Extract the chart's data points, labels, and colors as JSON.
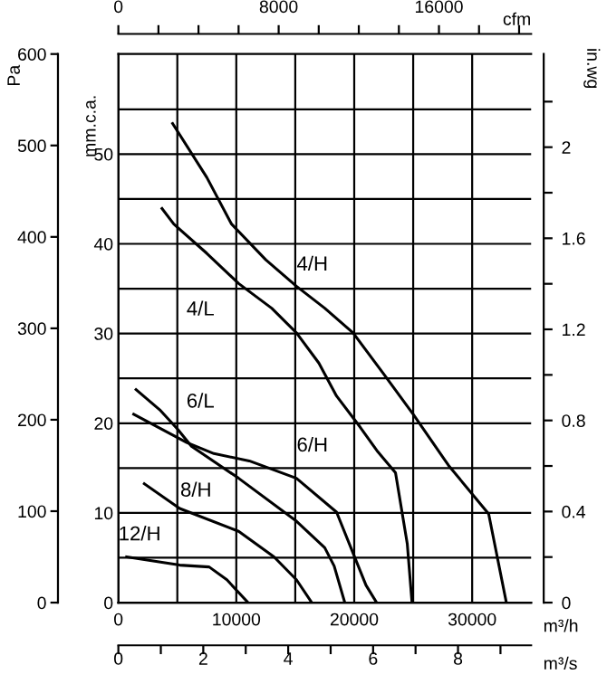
{
  "chart_data": {
    "type": "line",
    "xlabel": "m³/h",
    "ylabel": "Pa",
    "y2label": "mm.c.a.",
    "y3label": "in.wg",
    "x2label": "cfm",
    "xlim": [
      0,
      35000
    ],
    "xticks": [
      0,
      {
        "value": 5000,
        "label": null
      },
      10000,
      {
        "value": 15000,
        "label": null
      },
      20000,
      {
        "value": 25000,
        "label": null
      },
      30000
    ],
    "ylim": [
      0,
      600
    ],
    "yticks": [
      0,
      100,
      200,
      300,
      400,
      500,
      600
    ],
    "y2lim": [
      0,
      61.16
    ],
    "y2ticks": [
      0,
      {
        "value": 5,
        "label": null
      },
      10,
      {
        "value": 15,
        "label": null
      },
      20,
      {
        "value": 25,
        "label": null
      },
      30,
      {
        "value": 35,
        "label": null
      },
      40,
      {
        "value": 45,
        "label": null
      },
      50,
      {
        "value": 55,
        "label": null
      }
    ],
    "y3lim": [
      0,
      2.409
    ],
    "y3ticks": [
      0,
      {
        "value": 0.2,
        "label": null
      },
      0.4,
      {
        "value": 0.6,
        "label": null
      },
      0.8,
      {
        "value": 1.0,
        "label": null
      },
      1.2,
      {
        "value": 1.4,
        "label": null
      },
      1.6,
      {
        "value": 1.8,
        "label": null
      },
      2,
      {
        "value": 2.2,
        "label": null
      }
    ],
    "x2lim": [
      0,
      20600
    ],
    "x2ticks": [
      0,
      {
        "value": 2000,
        "label": null
      },
      {
        "value": 4000,
        "label": null
      },
      {
        "value": 6000,
        "label": null
      },
      8000,
      {
        "value": 10000,
        "label": null
      },
      {
        "value": 12000,
        "label": null
      },
      {
        "value": 14000,
        "label": null
      },
      16000,
      {
        "value": 18000,
        "label": null
      },
      {
        "value": 20000,
        "label": null
      }
    ],
    "grid": true,
    "marker": "none",
    "line_style": "solid",
    "series": [
      {
        "color": "#000000",
        "x": [
          4600,
          7500,
          9600,
          12500,
          15100,
          17500,
          19900,
          22500,
          25000,
          28000,
          31400,
          32900
        ],
        "values": [
          524,
          465,
          414,
          375,
          346,
          322,
          295,
          250,
          206,
          150,
          97,
          0
        ]
      },
      {
        "color": "#000000",
        "x": [
          3700,
          4700,
          7500,
          10200,
          13000,
          15100,
          17000,
          18500,
          20500,
          22000,
          23500,
          24500,
          24900
        ],
        "values": [
          431,
          414,
          382,
          349,
          322,
          295,
          262,
          226,
          192,
          165,
          142,
          64,
          0
        ]
      },
      {
        "color": "#000000",
        "x": [
          1500,
          3500,
          5000,
          6200,
          10200,
          15100,
          17500,
          18300,
          19200
        ],
        "values": [
          233,
          211,
          190,
          171,
          136,
          89,
          60,
          40,
          0
        ]
      },
      {
        "color": "#000000",
        "x": [
          1300,
          5800,
          8100,
          11100,
          15100,
          18500,
          21000,
          21900
        ],
        "values": [
          206,
          175,
          163,
          155,
          136,
          99,
          19,
          0
        ]
      },
      {
        "color": "#000000",
        "x": [
          2200,
          5200,
          10200,
          13200,
          15100,
          16400
        ],
        "values": [
          130,
          103,
          78,
          50,
          25,
          0
        ]
      },
      {
        "color": "#000000",
        "x": [
          700,
          5200,
          7700,
          9200,
          11000
        ],
        "values": [
          50,
          41,
          39,
          25,
          0
        ]
      }
    ],
    "annotations": [
      "4/H",
      "4/L",
      "6/L",
      "6/H",
      "8/H",
      "12/H",
      "0",
      "2",
      "4",
      "6",
      "8",
      "m³/s"
    ]
  }
}
